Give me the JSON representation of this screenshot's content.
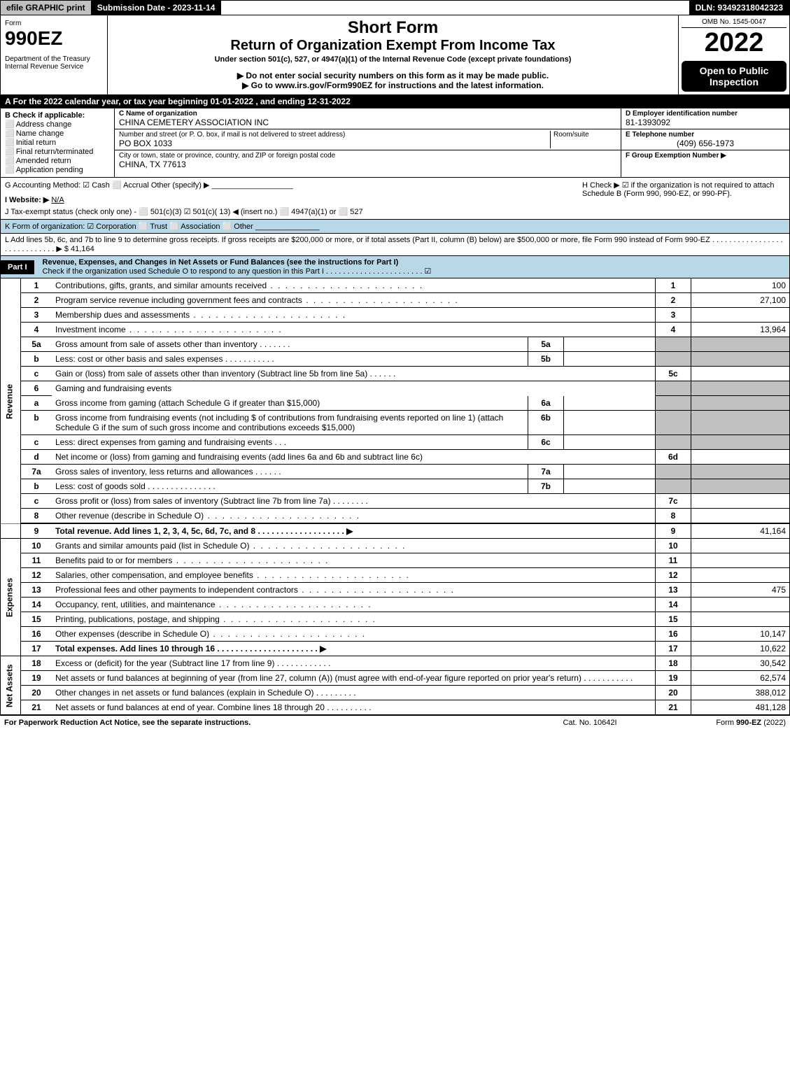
{
  "topbar": {
    "efile": "efile GRAPHIC print",
    "submission_date_label": "Submission Date - 2023-11-14",
    "dln": "DLN: 93492318042323"
  },
  "header": {
    "form_label": "Form",
    "form_number": "990EZ",
    "dept1": "Department of the Treasury",
    "dept2": "Internal Revenue Service",
    "short_form": "Short Form",
    "title": "Return of Organization Exempt From Income Tax",
    "under_section": "Under section 501(c), 527, or 4947(a)(1) of the Internal Revenue Code (except private foundations)",
    "no_ssn": "▶ Do not enter social security numbers on this form as it may be made public.",
    "goto": "▶ Go to www.irs.gov/Form990EZ for instructions and the latest information.",
    "omb": "OMB No. 1545-0047",
    "year": "2022",
    "open": "Open to Public Inspection"
  },
  "row_a": "A  For the 2022 calendar year, or tax year beginning 01-01-2022  , and ending 12-31-2022",
  "col_b": {
    "title": "B  Check if applicable:",
    "items": [
      "Address change",
      "Name change",
      "Initial return",
      "Final return/terminated",
      "Amended return",
      "Application pending"
    ]
  },
  "col_c": {
    "name_label": "C Name of organization",
    "org_name": "CHINA CEMETERY ASSOCIATION INC",
    "street_label": "Number and street (or P. O. box, if mail is not delivered to street address)",
    "room_label": "Room/suite",
    "street": "PO BOX 1033",
    "city_label": "City or town, state or province, country, and ZIP or foreign postal code",
    "city": "CHINA, TX  77613"
  },
  "col_def": {
    "d_label": "D Employer identification number",
    "ein": "81-1393092",
    "e_label": "E Telephone number",
    "phone": "(409) 656-1973",
    "f_label": "F Group Exemption Number  ▶"
  },
  "row_g": "G Accounting Method:   ☑ Cash   ⬜ Accrual   Other (specify) ▶ ___________________",
  "row_h": "H   Check ▶  ☑  if the organization is not required to attach Schedule B (Form 990, 990-EZ, or 990-PF).",
  "row_i_label": "I Website: ▶",
  "row_i_value": "N/A",
  "row_j": "J Tax-exempt status (check only one) -  ⬜ 501(c)(3)  ☑  501(c)( 13) ◀ (insert no.)  ⬜ 4947(a)(1) or  ⬜ 527",
  "row_k": "K Form of organization:   ☑ Corporation   ⬜ Trust   ⬜ Association   ⬜ Other  _______________",
  "row_l": "L Add lines 5b, 6c, and 7b to line 9 to determine gross receipts. If gross receipts are $200,000 or more, or if total assets (Part II, column (B) below) are $500,000 or more, file Form 990 instead of Form 990-EZ  . . . . . . . . . . . . . . . . . . . . . . . . . . . . .  ▶ $ 41,164",
  "part1": {
    "tag": "Part I",
    "title": "Revenue, Expenses, and Changes in Net Assets or Fund Balances (see the instructions for Part I)",
    "check_line": "Check if the organization used Schedule O to respond to any question in this Part I . . . . . . . . . . . . . . . . . . . . . . . ☑"
  },
  "sections": {
    "revenue": "Revenue",
    "expenses": "Expenses",
    "netassets": "Net Assets"
  },
  "lines": {
    "l1": {
      "no": "1",
      "desc": "Contributions, gifts, grants, and similar amounts received",
      "num": "1",
      "val": "100"
    },
    "l2": {
      "no": "2",
      "desc": "Program service revenue including government fees and contracts",
      "num": "2",
      "val": "27,100"
    },
    "l3": {
      "no": "3",
      "desc": "Membership dues and assessments",
      "num": "3",
      "val": ""
    },
    "l4": {
      "no": "4",
      "desc": "Investment income",
      "num": "4",
      "val": "13,964"
    },
    "l5a": {
      "no": "5a",
      "desc": "Gross amount from sale of assets other than inventory",
      "sub": "5a"
    },
    "l5b": {
      "no": "b",
      "desc": "Less: cost or other basis and sales expenses",
      "sub": "5b"
    },
    "l5c": {
      "no": "c",
      "desc": "Gain or (loss) from sale of assets other than inventory (Subtract line 5b from line 5a)",
      "num": "5c",
      "val": ""
    },
    "l6": {
      "no": "6",
      "desc": "Gaming and fundraising events"
    },
    "l6a": {
      "no": "a",
      "desc": "Gross income from gaming (attach Schedule G if greater than $15,000)",
      "sub": "6a"
    },
    "l6b": {
      "no": "b",
      "desc": "Gross income from fundraising events (not including $                      of contributions from fundraising events reported on line 1) (attach Schedule G if the sum of such gross income and contributions exceeds $15,000)",
      "sub": "6b"
    },
    "l6c": {
      "no": "c",
      "desc": "Less: direct expenses from gaming and fundraising events",
      "sub": "6c"
    },
    "l6d": {
      "no": "d",
      "desc": "Net income or (loss) from gaming and fundraising events (add lines 6a and 6b and subtract line 6c)",
      "num": "6d",
      "val": ""
    },
    "l7a": {
      "no": "7a",
      "desc": "Gross sales of inventory, less returns and allowances",
      "sub": "7a"
    },
    "l7b": {
      "no": "b",
      "desc": "Less: cost of goods sold",
      "sub": "7b"
    },
    "l7c": {
      "no": "c",
      "desc": "Gross profit or (loss) from sales of inventory (Subtract line 7b from line 7a)",
      "num": "7c",
      "val": ""
    },
    "l8": {
      "no": "8",
      "desc": "Other revenue (describe in Schedule O)",
      "num": "8",
      "val": ""
    },
    "l9": {
      "no": "9",
      "desc": "Total revenue. Add lines 1, 2, 3, 4, 5c, 6d, 7c, and 8   . . . . . . . . . . . . . . . . . . .  ▶",
      "num": "9",
      "val": "41,164"
    },
    "l10": {
      "no": "10",
      "desc": "Grants and similar amounts paid (list in Schedule O)",
      "num": "10",
      "val": ""
    },
    "l11": {
      "no": "11",
      "desc": "Benefits paid to or for members",
      "num": "11",
      "val": ""
    },
    "l12": {
      "no": "12",
      "desc": "Salaries, other compensation, and employee benefits",
      "num": "12",
      "val": ""
    },
    "l13": {
      "no": "13",
      "desc": "Professional fees and other payments to independent contractors",
      "num": "13",
      "val": "475"
    },
    "l14": {
      "no": "14",
      "desc": "Occupancy, rent, utilities, and maintenance",
      "num": "14",
      "val": ""
    },
    "l15": {
      "no": "15",
      "desc": "Printing, publications, postage, and shipping",
      "num": "15",
      "val": ""
    },
    "l16": {
      "no": "16",
      "desc": "Other expenses (describe in Schedule O)",
      "num": "16",
      "val": "10,147"
    },
    "l17": {
      "no": "17",
      "desc": "Total expenses. Add lines 10 through 16      . . . . . . . . . . . . . . . . . . . . . .  ▶",
      "num": "17",
      "val": "10,622"
    },
    "l18": {
      "no": "18",
      "desc": "Excess or (deficit) for the year (Subtract line 17 from line 9)",
      "num": "18",
      "val": "30,542"
    },
    "l19": {
      "no": "19",
      "desc": "Net assets or fund balances at beginning of year (from line 27, column (A)) (must agree with end-of-year figure reported on prior year's return)",
      "num": "19",
      "val": "62,574"
    },
    "l20": {
      "no": "20",
      "desc": "Other changes in net assets or fund balances (explain in Schedule O)",
      "num": "20",
      "val": "388,012"
    },
    "l21": {
      "no": "21",
      "desc": "Net assets or fund balances at end of year. Combine lines 18 through 20",
      "num": "21",
      "val": "481,128"
    }
  },
  "footer": {
    "left": "For Paperwork Reduction Act Notice, see the separate instructions.",
    "mid": "Cat. No. 10642I",
    "right": "Form 990-EZ (2022)"
  },
  "colors": {
    "header_blue": "#b8d8e8",
    "grey": "#c0c0c0",
    "black": "#000000",
    "white": "#ffffff"
  }
}
